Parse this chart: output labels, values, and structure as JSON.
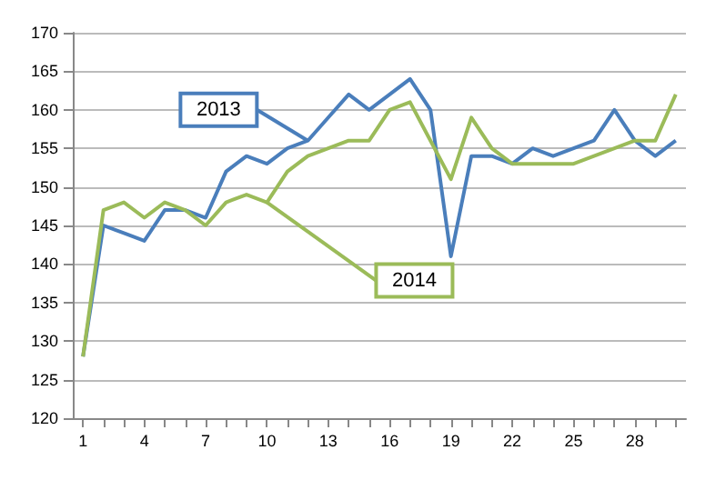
{
  "chart_data": {
    "type": "line",
    "x": [
      1,
      2,
      3,
      4,
      5,
      6,
      7,
      8,
      9,
      10,
      11,
      12,
      13,
      14,
      15,
      16,
      17,
      18,
      19,
      20,
      21,
      22,
      23,
      24,
      25,
      26,
      27,
      28,
      29,
      30
    ],
    "series": [
      {
        "name": "2013",
        "color": "#4a7ebb",
        "values": [
          128,
          145,
          144,
          143,
          147,
          147,
          146,
          152,
          154,
          153,
          155,
          156,
          159,
          162,
          160,
          162,
          164,
          160,
          141,
          154,
          154,
          153,
          155,
          154,
          155,
          156,
          160,
          156,
          154,
          156
        ]
      },
      {
        "name": "2014",
        "color": "#9bbb59",
        "values": [
          128,
          147,
          148,
          146,
          148,
          147,
          145,
          148,
          149,
          148,
          152,
          154,
          155,
          156,
          156,
          160,
          161,
          156,
          151,
          159,
          155,
          153,
          153,
          153,
          153,
          154,
          155,
          156,
          156,
          162
        ]
      }
    ],
    "xlim": [
      0.5,
      30.5
    ],
    "xticks": [
      1,
      {
        "value": 2,
        "label": null
      },
      {
        "value": 3,
        "label": null
      },
      4,
      {
        "value": 5,
        "label": null
      },
      {
        "value": 6,
        "label": null
      },
      7,
      {
        "value": 8,
        "label": null
      },
      {
        "value": 9,
        "label": null
      },
      10,
      {
        "value": 11,
        "label": null
      },
      {
        "value": 12,
        "label": null
      },
      13,
      {
        "value": 14,
        "label": null
      },
      {
        "value": 15,
        "label": null
      },
      16,
      {
        "value": 17,
        "label": null
      },
      {
        "value": 18,
        "label": null
      },
      19,
      {
        "value": 20,
        "label": null
      },
      {
        "value": 21,
        "label": null
      },
      22,
      {
        "value": 23,
        "label": null
      },
      {
        "value": 24,
        "label": null
      },
      25,
      {
        "value": 26,
        "label": null
      },
      {
        "value": 27,
        "label": null
      },
      28,
      {
        "value": 29,
        "label": null
      },
      {
        "value": 30,
        "label": null
      }
    ],
    "ylim": [
      120,
      170
    ],
    "yticks": [
      120,
      125,
      130,
      135,
      140,
      145,
      150,
      155,
      160,
      165,
      170
    ],
    "grid": "y",
    "legend": false,
    "marker": "none",
    "line_style": "solid"
  }
}
